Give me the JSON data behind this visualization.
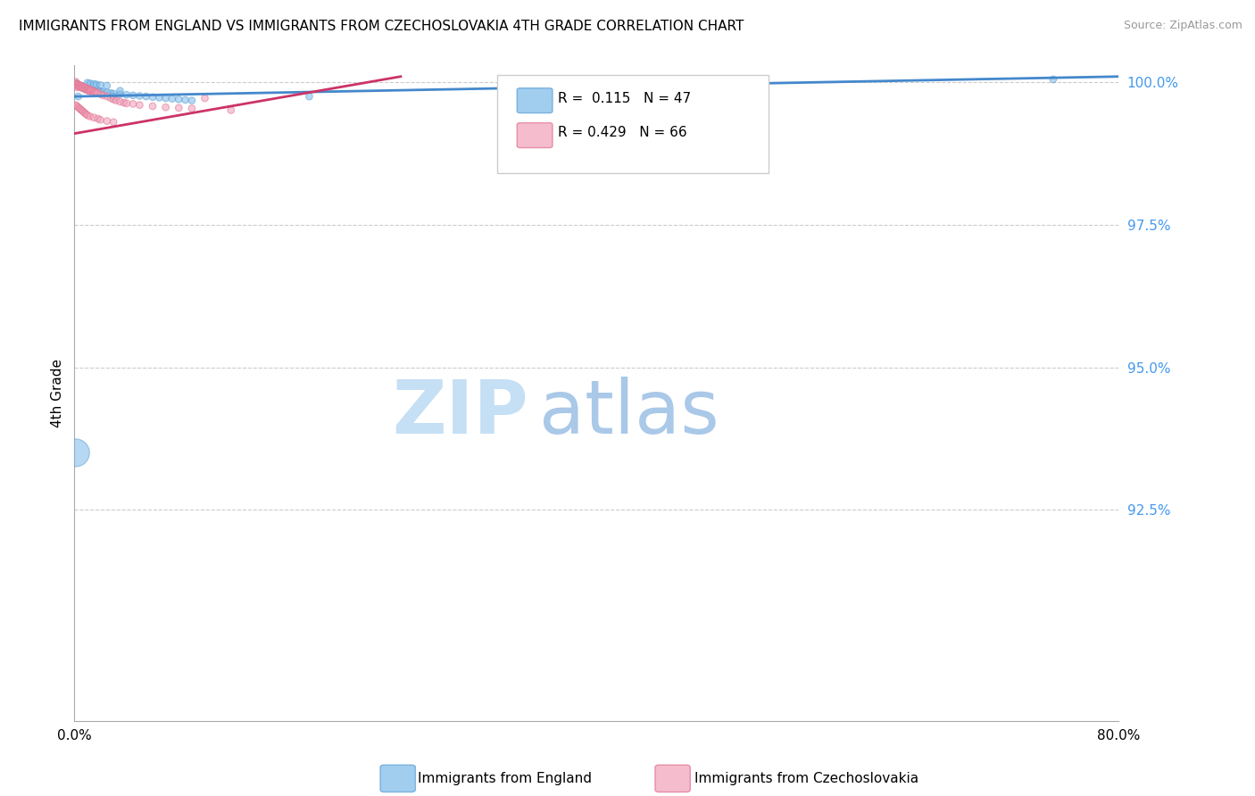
{
  "title": "IMMIGRANTS FROM ENGLAND VS IMMIGRANTS FROM CZECHOSLOVAKIA 4TH GRADE CORRELATION CHART",
  "source": "Source: ZipAtlas.com",
  "ylabel": "4th Grade",
  "england_color": "#7ab8e8",
  "england_edge_color": "#5a9fd4",
  "czech_color": "#f0a0b8",
  "czech_edge_color": "#e07090",
  "england_line_color": "#4488cc",
  "czech_line_color": "#cc3366",
  "legend_r_england": "R =  0.115",
  "legend_n_england": "N = 47",
  "legend_r_czech": "R = 0.429",
  "legend_n_czech": "N = 66",
  "xlim": [
    0.0,
    0.8
  ],
  "ylim": [
    0.888,
    1.003
  ],
  "ytick_vals": [
    1.0,
    0.975,
    0.95,
    0.925
  ],
  "ytick_labels": [
    "100.0%",
    "97.5%",
    "95.0%",
    "92.5%"
  ],
  "england_trend_x": [
    0.0,
    0.8
  ],
  "england_trend_y": [
    0.9975,
    1.001
  ],
  "czech_trend_x": [
    0.0,
    0.25
  ],
  "czech_trend_y": [
    0.991,
    1.001
  ],
  "england_scatter_x": [
    0.001,
    0.002,
    0.002,
    0.003,
    0.004,
    0.005,
    0.006,
    0.007,
    0.008,
    0.009,
    0.01,
    0.011,
    0.012,
    0.013,
    0.015,
    0.016,
    0.018,
    0.02,
    0.022,
    0.025,
    0.028,
    0.03,
    0.035,
    0.04,
    0.045,
    0.05,
    0.055,
    0.06,
    0.065,
    0.07,
    0.075,
    0.08,
    0.085,
    0.09,
    0.01,
    0.012,
    0.015,
    0.017,
    0.02,
    0.025,
    0.03,
    0.035,
    0.18,
    0.42,
    0.75,
    0.001,
    0.003
  ],
  "england_scatter_y": [
    0.9997,
    0.9996,
    0.9998,
    0.9995,
    0.9994,
    0.9993,
    0.9992,
    0.9991,
    0.999,
    0.9989,
    0.9988,
    0.9987,
    0.9986,
    0.9985,
    0.9984,
    0.9983,
    0.9985,
    0.9984,
    0.9983,
    0.9982,
    0.9981,
    0.998,
    0.9979,
    0.9978,
    0.9977,
    0.9976,
    0.9975,
    0.9974,
    0.9973,
    0.9972,
    0.9971,
    0.997,
    0.9969,
    0.9968,
    0.9999,
    0.9998,
    0.9997,
    0.9996,
    0.9995,
    0.9994,
    0.9975,
    0.9985,
    0.9975,
    0.9997,
    1.0005,
    0.935,
    0.9975
  ],
  "england_scatter_size": [
    30,
    30,
    30,
    30,
    30,
    30,
    30,
    30,
    30,
    30,
    30,
    30,
    30,
    30,
    30,
    30,
    30,
    30,
    30,
    30,
    30,
    30,
    30,
    30,
    30,
    30,
    30,
    30,
    30,
    30,
    30,
    30,
    30,
    30,
    30,
    30,
    30,
    30,
    30,
    30,
    30,
    30,
    30,
    30,
    30,
    500,
    30
  ],
  "czech_scatter_x": [
    0.001,
    0.001,
    0.001,
    0.002,
    0.002,
    0.002,
    0.003,
    0.003,
    0.004,
    0.004,
    0.005,
    0.005,
    0.006,
    0.006,
    0.007,
    0.007,
    0.008,
    0.008,
    0.009,
    0.009,
    0.01,
    0.01,
    0.011,
    0.011,
    0.012,
    0.012,
    0.013,
    0.014,
    0.015,
    0.015,
    0.016,
    0.017,
    0.018,
    0.02,
    0.022,
    0.025,
    0.028,
    0.03,
    0.032,
    0.035,
    0.038,
    0.04,
    0.045,
    0.05,
    0.06,
    0.07,
    0.08,
    0.09,
    0.1,
    0.12,
    0.001,
    0.002,
    0.003,
    0.004,
    0.005,
    0.006,
    0.007,
    0.008,
    0.009,
    0.01,
    0.012,
    0.015,
    0.018,
    0.02,
    0.025,
    0.03
  ],
  "czech_scatter_y": [
    1.0001,
    0.9998,
    0.9995,
    0.9997,
    0.9994,
    0.9991,
    0.9996,
    0.9993,
    0.9995,
    0.9992,
    0.9994,
    0.9991,
    0.9993,
    0.999,
    0.9992,
    0.9989,
    0.9991,
    0.9988,
    0.999,
    0.9987,
    0.9989,
    0.9986,
    0.9988,
    0.9985,
    0.9987,
    0.9984,
    0.9986,
    0.9985,
    0.9984,
    0.9981,
    0.9983,
    0.9982,
    0.9981,
    0.9979,
    0.9977,
    0.9975,
    0.9972,
    0.997,
    0.9968,
    0.9966,
    0.9964,
    0.9963,
    0.9962,
    0.996,
    0.9958,
    0.9956,
    0.9955,
    0.9954,
    0.9972,
    0.9951,
    0.996,
    0.9958,
    0.9956,
    0.9954,
    0.9952,
    0.995,
    0.9948,
    0.9946,
    0.9944,
    0.9942,
    0.994,
    0.9938,
    0.9936,
    0.9934,
    0.9932,
    0.993
  ],
  "czech_scatter_size": [
    30,
    30,
    30,
    30,
    30,
    30,
    30,
    30,
    30,
    30,
    30,
    30,
    30,
    30,
    30,
    30,
    30,
    30,
    30,
    30,
    30,
    30,
    30,
    30,
    30,
    30,
    30,
    30,
    30,
    30,
    30,
    30,
    30,
    30,
    30,
    30,
    30,
    30,
    30,
    30,
    30,
    30,
    30,
    30,
    30,
    30,
    30,
    30,
    30,
    30,
    30,
    30,
    30,
    30,
    30,
    30,
    30,
    30,
    30,
    30,
    30,
    30,
    30,
    30,
    30,
    30
  ]
}
